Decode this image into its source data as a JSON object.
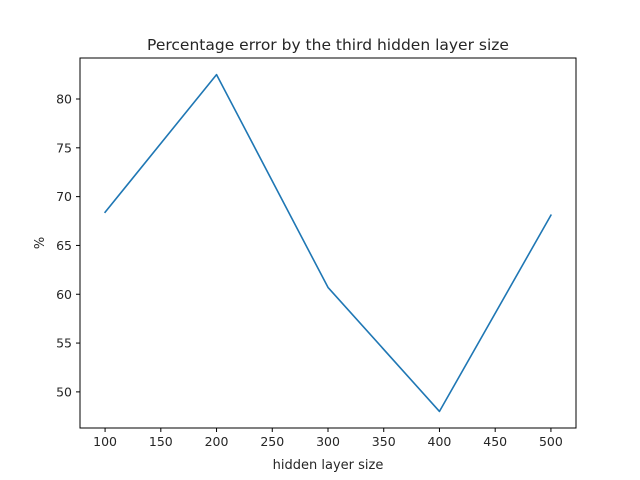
{
  "chart_data": {
    "type": "line",
    "title": "Percentage error by the third hidden layer size",
    "xlabel": "hidden layer size",
    "ylabel": "%",
    "x": [
      100,
      200,
      300,
      400,
      500
    ],
    "series": [
      {
        "values": [
          68.4,
          82.5,
          60.7,
          48.0,
          68.1
        ],
        "color": "#1f77b4"
      }
    ],
    "xlim": [
      77.5,
      522.5
    ],
    "ylim": [
      46.3,
      84.2
    ],
    "xticks": [
      100,
      150,
      200,
      250,
      300,
      350,
      400,
      450,
      500
    ],
    "yticks": [
      50,
      55,
      60,
      65,
      70,
      75,
      80
    ],
    "grid": false,
    "legend": "none"
  }
}
